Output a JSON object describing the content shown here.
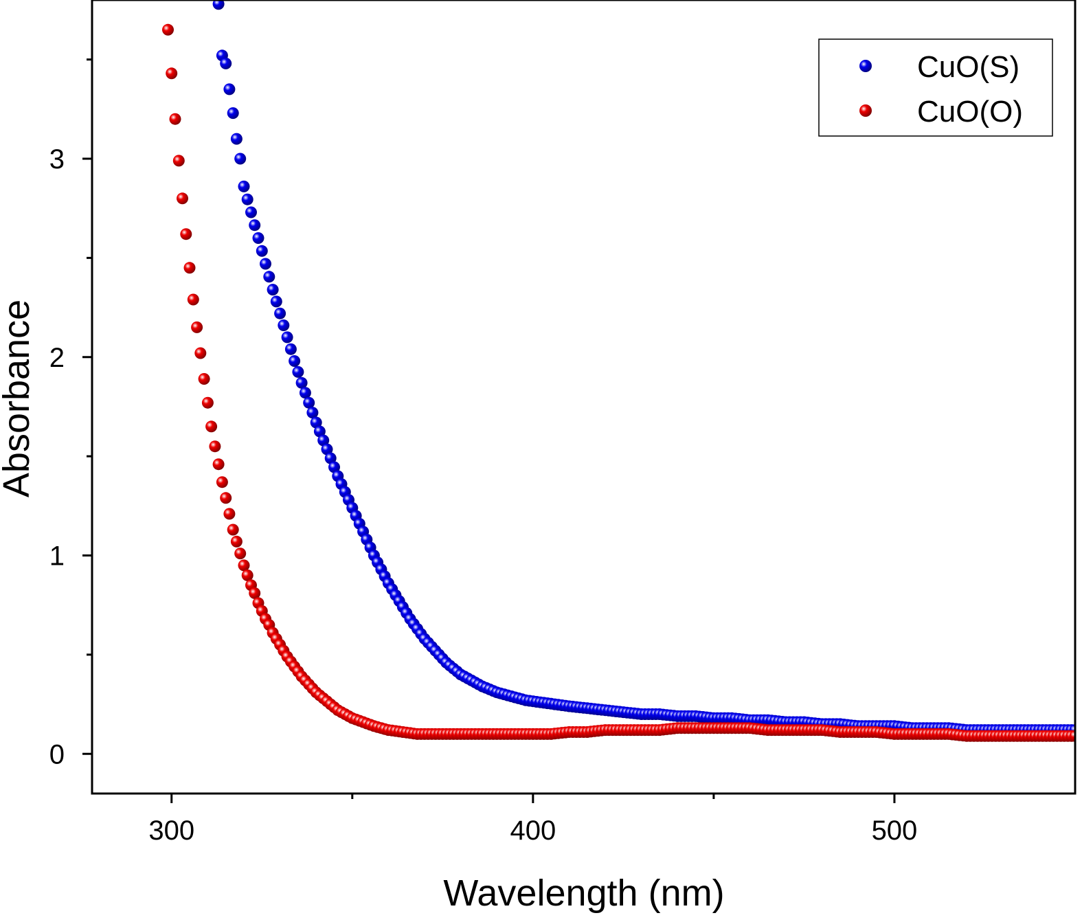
{
  "chart_data": {
    "type": "scatter",
    "xlabel": "Wavelength (nm)",
    "ylabel": "Absorbance",
    "xlim": [
      278,
      550
    ],
    "ylim": [
      -0.2,
      3.8
    ],
    "x_ticks": [
      300,
      400,
      500
    ],
    "x_minor_ticks": [
      350,
      450
    ],
    "y_ticks": [
      0,
      1,
      2,
      3
    ],
    "grid": false,
    "legend_position": "top-right",
    "series": [
      {
        "name": "CuO(S)",
        "color": "#0000ee",
        "x": [
          313,
          314,
          315,
          316,
          317,
          318,
          319,
          320,
          322,
          324,
          326,
          328,
          330,
          332,
          334,
          336,
          338,
          340,
          342,
          344,
          346,
          348,
          350,
          352,
          354,
          356,
          358,
          360,
          362,
          364,
          366,
          368,
          370,
          372,
          374,
          376,
          378,
          380,
          383,
          386,
          390,
          394,
          398,
          402,
          406,
          410,
          415,
          420,
          425,
          430,
          435,
          440,
          445,
          450,
          455,
          460,
          465,
          470,
          475,
          480,
          485,
          490,
          495,
          500,
          505,
          510,
          515,
          520,
          525,
          530,
          535,
          540,
          545,
          550
        ],
        "y": [
          3.78,
          3.52,
          3.48,
          3.35,
          3.23,
          3.1,
          3.0,
          2.86,
          2.73,
          2.6,
          2.47,
          2.34,
          2.22,
          2.1,
          1.98,
          1.87,
          1.77,
          1.67,
          1.58,
          1.49,
          1.4,
          1.32,
          1.24,
          1.16,
          1.08,
          1.0,
          0.93,
          0.86,
          0.8,
          0.74,
          0.68,
          0.63,
          0.58,
          0.54,
          0.5,
          0.46,
          0.43,
          0.4,
          0.37,
          0.34,
          0.31,
          0.29,
          0.27,
          0.26,
          0.25,
          0.24,
          0.23,
          0.22,
          0.21,
          0.2,
          0.2,
          0.19,
          0.19,
          0.18,
          0.18,
          0.17,
          0.17,
          0.16,
          0.16,
          0.15,
          0.15,
          0.14,
          0.14,
          0.14,
          0.13,
          0.13,
          0.13,
          0.12,
          0.12,
          0.12,
          0.12,
          0.12,
          0.12,
          0.12
        ]
      },
      {
        "name": "CuO(O)",
        "color": "#ee0000",
        "x": [
          299,
          300,
          301,
          302,
          303,
          304,
          305,
          306,
          307,
          308,
          309,
          310,
          311,
          312,
          313,
          314,
          315,
          316,
          317,
          318,
          319,
          320,
          321,
          322,
          323,
          324,
          325,
          326,
          327,
          328,
          330,
          332,
          334,
          336,
          338,
          340,
          342,
          344,
          346,
          348,
          350,
          353,
          356,
          360,
          364,
          368,
          372,
          376,
          380,
          385,
          390,
          395,
          400,
          405,
          410,
          415,
          420,
          425,
          430,
          435,
          440,
          445,
          450,
          455,
          460,
          465,
          470,
          475,
          480,
          485,
          490,
          495,
          500,
          505,
          510,
          515,
          520,
          525,
          530,
          535,
          540,
          545,
          550
        ],
        "y": [
          3.65,
          3.43,
          3.2,
          2.99,
          2.8,
          2.62,
          2.45,
          2.29,
          2.15,
          2.02,
          1.89,
          1.77,
          1.65,
          1.55,
          1.46,
          1.37,
          1.29,
          1.21,
          1.13,
          1.07,
          1.01,
          0.95,
          0.9,
          0.85,
          0.81,
          0.76,
          0.72,
          0.68,
          0.65,
          0.61,
          0.55,
          0.49,
          0.44,
          0.39,
          0.35,
          0.31,
          0.28,
          0.25,
          0.22,
          0.2,
          0.18,
          0.16,
          0.14,
          0.12,
          0.11,
          0.1,
          0.1,
          0.1,
          0.1,
          0.1,
          0.1,
          0.1,
          0.1,
          0.1,
          0.11,
          0.11,
          0.12,
          0.12,
          0.12,
          0.12,
          0.13,
          0.13,
          0.13,
          0.13,
          0.13,
          0.12,
          0.12,
          0.12,
          0.12,
          0.11,
          0.11,
          0.11,
          0.1,
          0.1,
          0.1,
          0.1,
          0.09,
          0.09,
          0.09,
          0.09,
          0.09,
          0.09,
          0.09
        ]
      }
    ]
  }
}
